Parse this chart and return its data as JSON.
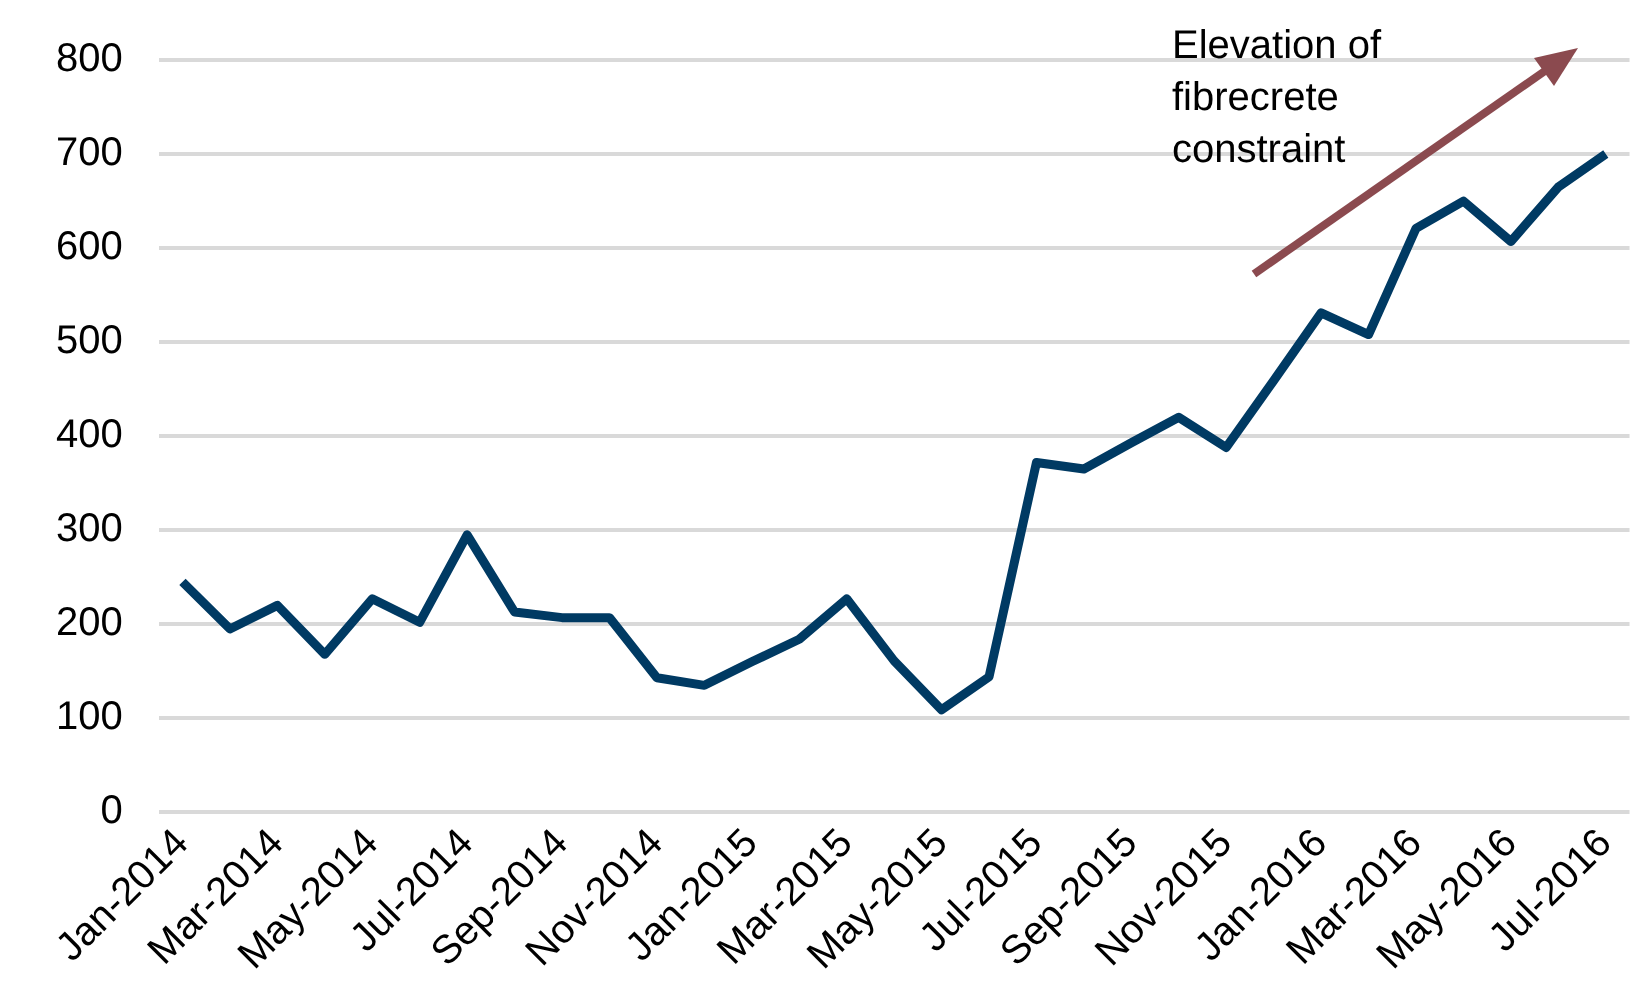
{
  "chart_data": {
    "type": "line",
    "categories": [
      "Jan-2014",
      null,
      "Mar-2014",
      null,
      "May-2014",
      null,
      "Jul-2014",
      null,
      "Sep-2014",
      null,
      "Nov-2014",
      null,
      "Jan-2015",
      null,
      "Mar-2015",
      null,
      "May-2015",
      null,
      "Jul-2015",
      null,
      "Sep-2015",
      null,
      "Nov-2015",
      null,
      "Jan-2016",
      null,
      "Mar-2016",
      null,
      "May-2016",
      null,
      "Jul-2016"
    ],
    "series": [
      {
        "color": "#003a63",
        "values": [
          245,
          195,
          220,
          168,
          227,
          202,
          295,
          213,
          207,
          207,
          143,
          135,
          160,
          184,
          227,
          161,
          109,
          144,
          372,
          365,
          393,
          420,
          388,
          459,
          531,
          508,
          621,
          650,
          607,
          665,
          700
        ]
      }
    ],
    "ylim": [
      0,
      800
    ],
    "yticks": [
      0,
      100,
      200,
      300,
      400,
      500,
      600,
      700,
      800
    ],
    "grid": "y",
    "legend": false,
    "marker": "none",
    "line_style": "solid",
    "annotations": [
      "Elevation of fibrecrete constraint"
    ]
  }
}
